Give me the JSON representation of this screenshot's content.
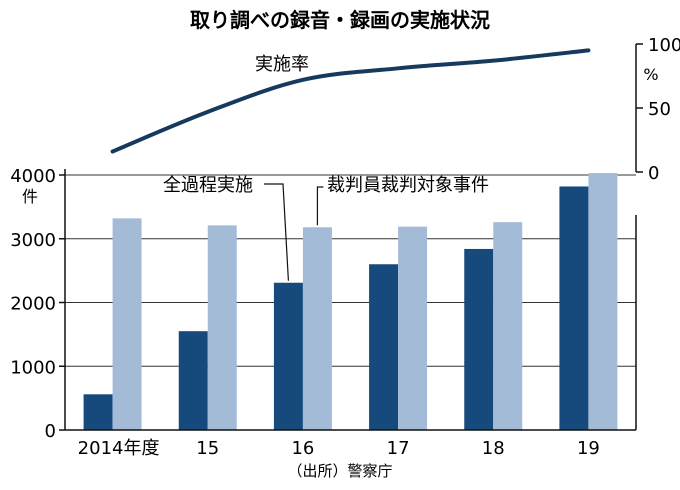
{
  "chart_data": {
    "type": "bar",
    "title": "取り調べの録音・録画の実施状況",
    "categories": [
      "2014年度",
      "15",
      "16",
      "17",
      "18",
      "19"
    ],
    "series": [
      {
        "name": "全過程実施",
        "values": [
          560,
          1550,
          2310,
          2600,
          2840,
          3820
        ],
        "color": "#164a7c"
      },
      {
        "name": "裁判員裁判対象事件",
        "values": [
          3320,
          3210,
          3180,
          3190,
          3260,
          4030
        ],
        "color": "#a4bbd8"
      }
    ],
    "ylim": [
      0,
      4000
    ],
    "yticks": [
      0,
      1000,
      2000,
      3000,
      4000
    ],
    "ylabel": "件",
    "grid": true,
    "rate": {
      "name": "実施率",
      "values": [
        16,
        47,
        72,
        81,
        87,
        95
      ],
      "ylim": [
        0,
        100
      ],
      "yticks": [
        0,
        50,
        100
      ],
      "ylabel": "%",
      "color": "#163a5e"
    },
    "source": "（出所）警察庁"
  }
}
